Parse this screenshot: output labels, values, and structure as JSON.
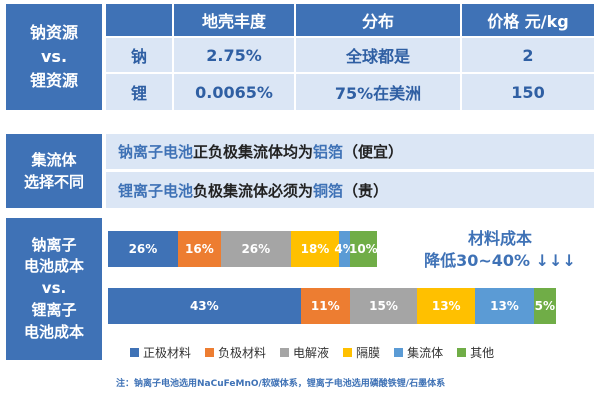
{
  "colors": {
    "header_blue": "#3f72b6",
    "cell_bg": "#dbe6f5",
    "highlight": "#3f72b6"
  },
  "resource_table": {
    "side_label": [
      "钠资源",
      "vs.",
      "锂资源"
    ],
    "headers": [
      "地壳丰度",
      "分布",
      "价格 元/kg"
    ],
    "rows": [
      {
        "element": "钠",
        "abundance": "2.75%",
        "distribution": "全球都是",
        "price": "2"
      },
      {
        "element": "锂",
        "abundance": "0.0065%",
        "distribution": "75%在美洲",
        "price": "150"
      }
    ]
  },
  "collector": {
    "side_label": [
      "集流体",
      "选择不同"
    ],
    "line1": {
      "subject": "钠离子电池",
      "mid": "正负极集流体均为",
      "material": "铝箔",
      "note": "（便宜）"
    },
    "line2": {
      "subject": "锂离子电池",
      "mid": "负极集流体必须为",
      "material": "铜箔",
      "note": "（贵）"
    }
  },
  "cost_section": {
    "side_label": [
      "钠离子",
      "电池成本",
      "vs.",
      "锂离子",
      "电池成本"
    ],
    "note_line1": "材料成本",
    "note_line2": "降低30~40% ↓↓↓"
  },
  "chart_data": {
    "type": "bar",
    "orientation": "horizontal",
    "stacked": true,
    "categories": [
      "钠离子电池成本",
      "锂离子电池成本"
    ],
    "series": [
      {
        "name": "正极材料",
        "color": "#3f72b6",
        "values": [
          26,
          43
        ]
      },
      {
        "name": "负极材料",
        "color": "#ed7d31",
        "values": [
          16,
          11
        ]
      },
      {
        "name": "电解液",
        "color": "#a5a5a5",
        "values": [
          26,
          15
        ]
      },
      {
        "name": "隔膜",
        "color": "#ffc000",
        "values": [
          18,
          13
        ]
      },
      {
        "name": "集流体",
        "color": "#5b9bd5",
        "values": [
          4,
          13
        ]
      },
      {
        "name": "其他",
        "color": "#70ad47",
        "values": [
          10,
          5
        ]
      }
    ],
    "legend_position": "bottom"
  },
  "footnote": "注：钠离子电池选用NaCuFeMnO/软碳体系，锂离子电池选用磷酸铁锂/石墨体系"
}
